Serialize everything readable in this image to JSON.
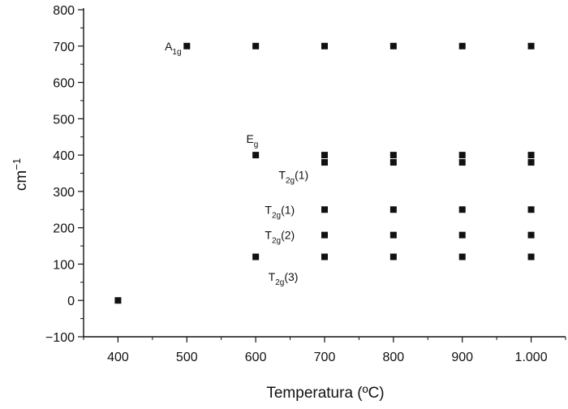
{
  "chart_data": {
    "type": "scatter",
    "title": "",
    "xlabel": "Temperatura (ºC)",
    "ylabel": "cm",
    "ylabel_superscript": "−1",
    "xlim": [
      350,
      1050
    ],
    "ylim": [
      -100,
      800
    ],
    "grid": false,
    "legend": "none",
    "x_ticks": [
      400,
      500,
      600,
      700,
      800,
      900,
      1000
    ],
    "x_tick_labels": [
      "400",
      "500",
      "600",
      "700",
      "800",
      "900",
      "1.000"
    ],
    "y_ticks": [
      -100,
      0,
      100,
      200,
      300,
      400,
      500,
      600,
      700,
      800
    ],
    "y_tick_labels": [
      "−100",
      "0",
      "100",
      "200",
      "300",
      "400",
      "500",
      "600",
      "700",
      "800"
    ],
    "marker": "square",
    "marker_color": "#111111",
    "series": [
      {
        "points": [
          [
            400,
            0
          ],
          [
            500,
            700
          ],
          [
            600,
            700
          ],
          [
            600,
            400
          ],
          [
            600,
            120
          ],
          [
            700,
            700
          ],
          [
            700,
            400
          ],
          [
            700,
            380
          ],
          [
            700,
            250
          ],
          [
            700,
            180
          ],
          [
            700,
            120
          ],
          [
            800,
            700
          ],
          [
            800,
            400
          ],
          [
            800,
            380
          ],
          [
            800,
            250
          ],
          [
            800,
            180
          ],
          [
            800,
            120
          ],
          [
            900,
            700
          ],
          [
            900,
            400
          ],
          [
            900,
            380
          ],
          [
            900,
            250
          ],
          [
            900,
            180
          ],
          [
            900,
            120
          ],
          [
            1000,
            700
          ],
          [
            1000,
            400
          ],
          [
            1000,
            380
          ],
          [
            1000,
            250
          ],
          [
            1000,
            180
          ],
          [
            1000,
            120
          ]
        ]
      }
    ],
    "annotations": [
      {
        "main": "A",
        "sub": "1g",
        "suffix": "",
        "x": 480,
        "y": 700
      },
      {
        "main": "E",
        "sub": "g",
        "suffix": "",
        "x": 595,
        "y": 445
      },
      {
        "main": "T",
        "sub": "2g",
        "suffix": "(1)",
        "x": 655,
        "y": 345
      },
      {
        "main": "T",
        "sub": "2g",
        "suffix": "(1)",
        "x": 635,
        "y": 250
      },
      {
        "main": "T",
        "sub": "2g",
        "suffix": "(2)",
        "x": 635,
        "y": 180
      },
      {
        "main": "T",
        "sub": "2g",
        "suffix": "(3)",
        "x": 640,
        "y": 65
      }
    ]
  }
}
